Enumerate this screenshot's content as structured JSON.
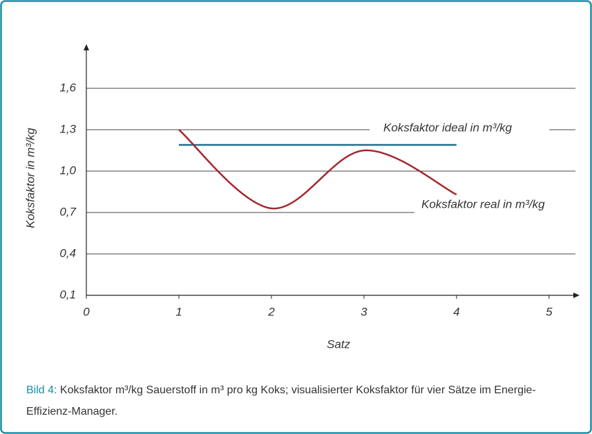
{
  "chart_data": {
    "type": "line",
    "y_axis_label": "Koksfaktor in m³/kg",
    "x_axis_label": "Satz",
    "caption_label": "Bild 4:",
    "caption": "Koksfaktor m³/kg Sauerstoff in m³ pro kg Koks; visualisierter Koksfaktor für vier Sätze im Energie-Effizienz-Manager.",
    "xlim": [
      0,
      5.3
    ],
    "xticks": [
      0,
      1,
      2,
      3,
      4,
      5
    ],
    "ylim": [
      0.1,
      1.9
    ],
    "yticks": [
      {
        "value": 0.1,
        "label": "0,1"
      },
      {
        "value": 0.4,
        "label": "0,4"
      },
      {
        "value": 0.7,
        "label": "0,7"
      },
      {
        "value": 1.0,
        "label": "1,0"
      },
      {
        "value": 1.3,
        "label": "1,3"
      },
      {
        "value": 1.6,
        "label": "1,6"
      }
    ],
    "grid": true,
    "series": [
      {
        "name": "Koksfaktor ideal in m³/kg",
        "color": "#1f6e8c",
        "x": [
          1,
          4
        ],
        "values": [
          1.19,
          1.19
        ]
      },
      {
        "name": "Koksfaktor real in m³/kg",
        "color": "#a3282e",
        "x": [
          1,
          2,
          3,
          4
        ],
        "values": [
          1.3,
          0.73,
          1.15,
          0.83
        ]
      }
    ]
  }
}
